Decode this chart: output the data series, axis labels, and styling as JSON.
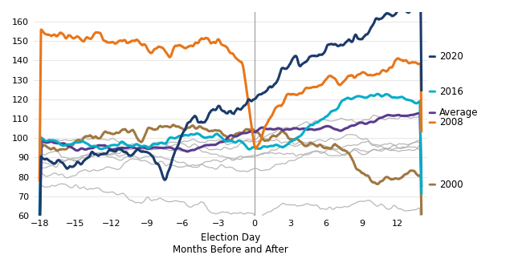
{
  "xlabel": "Election Day\nMonths Before and After",
  "xlim": [
    -18.5,
    14.5
  ],
  "ylim": [
    60,
    165
  ],
  "yticks": [
    60,
    70,
    80,
    90,
    100,
    110,
    120,
    130,
    140,
    150,
    160
  ],
  "xticks": [
    -18,
    -15,
    -12,
    -9,
    -6,
    -3,
    0,
    3,
    6,
    9,
    12
  ],
  "vline_x": 0,
  "series": {
    "2020": {
      "color": "#1b3a6b",
      "linewidth": 2.2,
      "zorder": 6
    },
    "2016": {
      "color": "#00aec7",
      "linewidth": 2.2,
      "zorder": 5
    },
    "Average": {
      "color": "#5b3a8e",
      "linewidth": 2.2,
      "zorder": 5
    },
    "2008": {
      "color": "#e8761a",
      "linewidth": 2.2,
      "zorder": 5
    },
    "2000": {
      "color": "#a07840",
      "linewidth": 2.2,
      "zorder": 4
    }
  },
  "gray_color": "#b0b0b0",
  "gray_linewidth": 0.9,
  "background_color": "#ffffff",
  "legend_labels": [
    "2020",
    "2016",
    "Average",
    "2008",
    "2000"
  ],
  "legend_colors": [
    "#1b3a6b",
    "#00aec7",
    "#5b3a8e",
    "#e8761a",
    "#a07840"
  ]
}
